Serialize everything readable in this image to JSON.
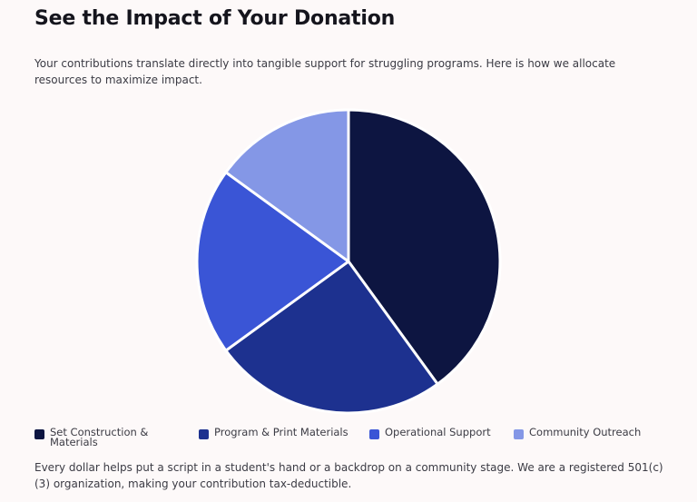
{
  "header": {
    "title": "See the Impact of Your Donation",
    "intro": "Your contributions translate directly into tangible support for struggling programs. Here is how we allocate resources to maximize impact."
  },
  "chart_data": {
    "type": "pie",
    "labels": [
      "Set Construction & Materials",
      "Program & Print Materials",
      "Operational Support",
      "Community Outreach"
    ],
    "values": [
      40,
      25,
      20,
      15
    ],
    "colors": [
      "#0d1541",
      "#1d318f",
      "#3a55d6",
      "#8497e6"
    ],
    "legend_position": "bottom"
  },
  "footnote": "Every dollar helps put a script in a student's hand or a backdrop on a community stage. We are a registered 501(c)(3) organization, making your contribution tax-deductible."
}
